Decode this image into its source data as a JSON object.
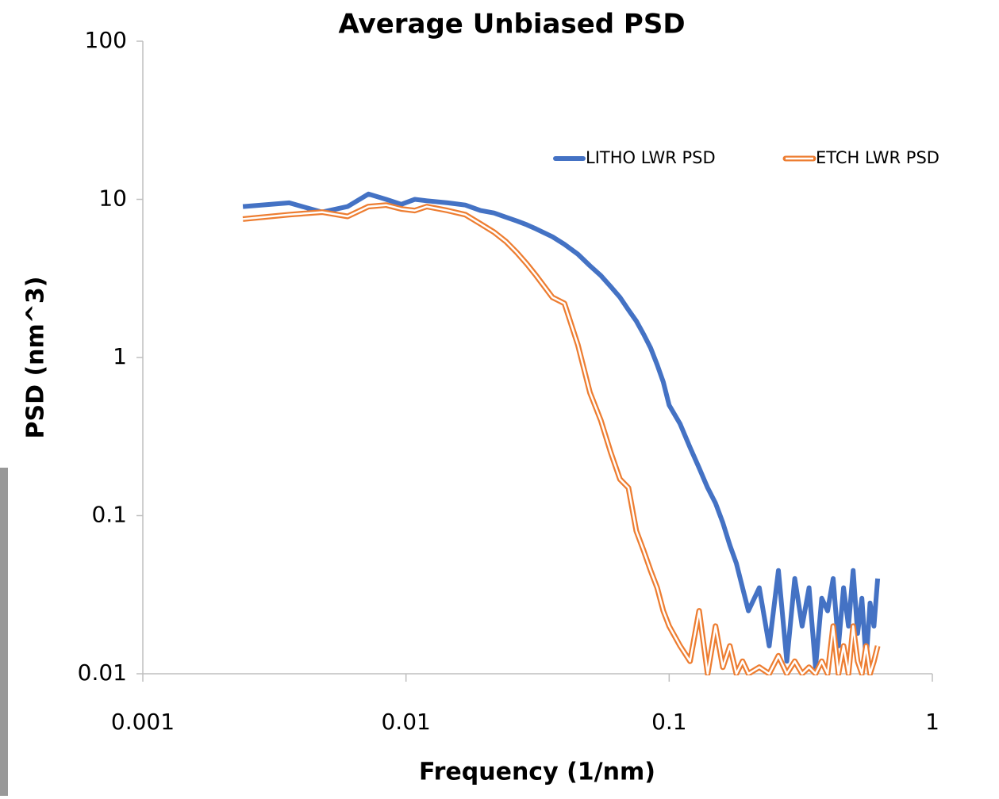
{
  "chart_data": {
    "type": "line",
    "title": "Average Unbiased PSD",
    "x_label": "Frequency (1/nm)",
    "y_label": "PSD (nm^3)",
    "log_x": true,
    "log_y": true,
    "legend": "top-right",
    "xlim": [
      0.001,
      1
    ],
    "xticks": [
      0.001,
      0.01,
      0.1,
      1
    ],
    "ylim": [
      0.01,
      100
    ],
    "yticks": [
      0.01,
      0.1,
      1,
      10,
      100
    ],
    "x": [
      0.0024,
      0.0036,
      0.0048,
      0.006,
      0.0072,
      0.0084,
      0.0096,
      0.0108,
      0.012,
      0.0144,
      0.0168,
      0.0192,
      0.0216,
      0.024,
      0.0264,
      0.0288,
      0.0312,
      0.036,
      0.04,
      0.045,
      0.05,
      0.055,
      0.06,
      0.065,
      0.07,
      0.075,
      0.08,
      0.085,
      0.09,
      0.095,
      0.1,
      0.11,
      0.12,
      0.13,
      0.14,
      0.15,
      0.16,
      0.17,
      0.18,
      0.19,
      0.2,
      0.22,
      0.24,
      0.26,
      0.28,
      0.3,
      0.32,
      0.34,
      0.36,
      0.38,
      0.4,
      0.42,
      0.44,
      0.46,
      0.48,
      0.5,
      0.52,
      0.54,
      0.56,
      0.58,
      0.6,
      0.62
    ],
    "series": [
      {
        "name": "LITHO LWR PSD",
        "color": "#4472c4",
        "style": "solid",
        "values": [
          9.0,
          9.5,
          8.3,
          9.0,
          10.8,
          10.0,
          9.3,
          10.0,
          9.8,
          9.5,
          9.2,
          8.5,
          8.2,
          7.7,
          7.3,
          6.9,
          6.5,
          5.8,
          5.2,
          4.5,
          3.8,
          3.3,
          2.8,
          2.4,
          2.0,
          1.7,
          1.4,
          1.15,
          0.9,
          0.7,
          0.5,
          0.38,
          0.27,
          0.2,
          0.15,
          0.12,
          0.09,
          0.065,
          0.05,
          0.035,
          0.025,
          0.035,
          0.015,
          0.045,
          0.012,
          0.04,
          0.02,
          0.035,
          0.011,
          0.03,
          0.025,
          0.04,
          0.015,
          0.035,
          0.02,
          0.045,
          0.018,
          0.03,
          0.012,
          0.028,
          0.02,
          0.04
        ]
      },
      {
        "name": "ETCH LWR PSD",
        "color": "#ed7d31",
        "style": "double",
        "values": [
          7.5,
          8.0,
          8.3,
          7.8,
          9.0,
          9.2,
          8.7,
          8.5,
          9.0,
          8.5,
          8.0,
          7.0,
          6.2,
          5.4,
          4.6,
          3.9,
          3.3,
          2.4,
          2.2,
          1.2,
          0.6,
          0.4,
          0.25,
          0.17,
          0.15,
          0.08,
          0.06,
          0.045,
          0.035,
          0.025,
          0.02,
          0.015,
          0.012,
          0.025,
          0.01,
          0.02,
          0.011,
          0.015,
          0.01,
          0.012,
          0.01,
          0.011,
          0.01,
          0.013,
          0.01,
          0.012,
          0.01,
          0.011,
          0.01,
          0.012,
          0.01,
          0.02,
          0.01,
          0.015,
          0.01,
          0.02,
          0.012,
          0.01,
          0.015,
          0.01,
          0.012,
          0.015
        ]
      }
    ]
  }
}
